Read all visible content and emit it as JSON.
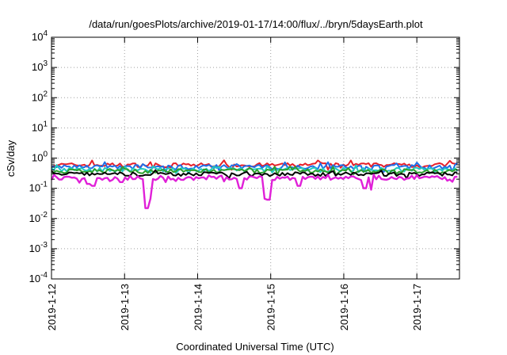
{
  "chart_data": {
    "type": "line",
    "title": "/data/run/goesPlots/archive/2019-01-17/14:00/flux/../bryn/5daysEarth.plot",
    "xlabel": "Coordinated Universal Time (UTC)",
    "ylabel": "cSv/day",
    "yscale": "log",
    "ylim": [
      0.0001,
      10000
    ],
    "xlim": [
      "2019-01-12T00:00",
      "2019-01-17T14:00"
    ],
    "grid": true,
    "legend": "none",
    "y_ticks": [
      {
        "base": "10",
        "exp": "-4"
      },
      {
        "base": "10",
        "exp": "-3"
      },
      {
        "base": "10",
        "exp": "-2"
      },
      {
        "base": "10",
        "exp": "-1"
      },
      {
        "base": "10",
        "exp": "0"
      },
      {
        "base": "10",
        "exp": "1"
      },
      {
        "base": "10",
        "exp": "2"
      },
      {
        "base": "10",
        "exp": "3"
      },
      {
        "base": "10",
        "exp": "4"
      }
    ],
    "x_ticks": [
      "2019-1-12",
      "2019-1-13",
      "2019-1-14",
      "2019-1-15",
      "2019-1-16",
      "2019-1-17"
    ],
    "series": [
      {
        "color": "#e8202a",
        "base": 0.6,
        "dips": []
      },
      {
        "color": "#1f6fe8",
        "base": 0.52,
        "dips": []
      },
      {
        "color": "#22c9c0",
        "base": 0.42,
        "dips": []
      },
      {
        "color": "#2ea02e",
        "base": 0.38,
        "dips": []
      },
      {
        "color": "#000000",
        "base": 0.3,
        "dips": []
      },
      {
        "color": "#e020d8",
        "base": 0.22,
        "dips": [
          {
            "date": "2019-01-12T12:00",
            "value": 0.14
          },
          {
            "date": "2019-01-12T14:00",
            "value": 0.12
          },
          {
            "date": "2019-01-12T23:00",
            "value": 0.16
          },
          {
            "date": "2019-01-13T07:00",
            "value": 0.022
          },
          {
            "date": "2019-01-13T08:00",
            "value": 0.045
          },
          {
            "date": "2019-01-14T14:00",
            "value": 0.1
          },
          {
            "date": "2019-01-14T22:00",
            "value": 0.045
          },
          {
            "date": "2019-01-14T23:00",
            "value": 0.042
          },
          {
            "date": "2019-01-15T09:00",
            "value": 0.12
          },
          {
            "date": "2019-01-16T07:00",
            "value": 0.1
          },
          {
            "date": "2019-01-16T09:00",
            "value": 0.09
          }
        ]
      }
    ]
  }
}
